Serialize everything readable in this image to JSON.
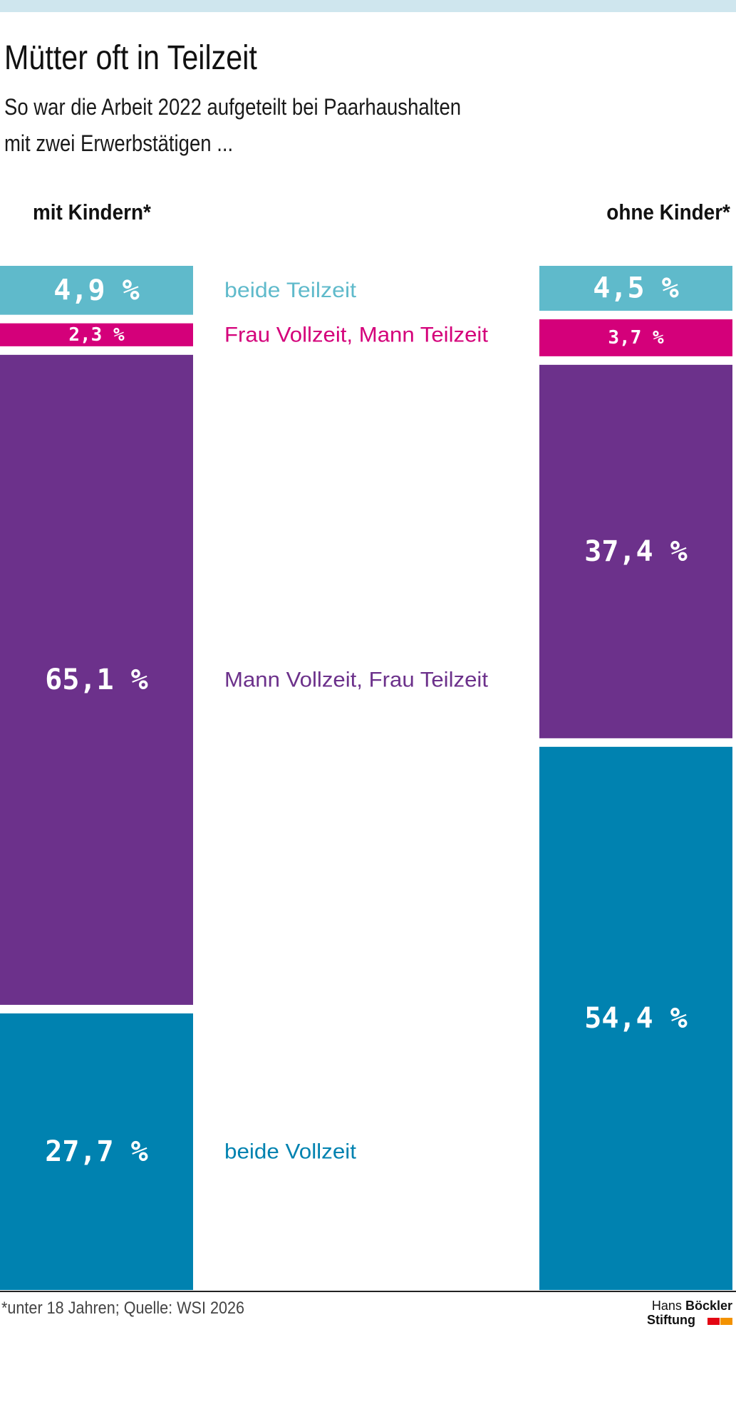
{
  "header": {
    "title": "Mütter oft in Teilzeit",
    "subtitle_line1": "So war die Arbeit 2022 aufgeteilt bei Paarhaushalten",
    "subtitle_line2": "mit zwei Erwerbstätigen ..."
  },
  "footer": {
    "source": "*unter 18 Jahren; Quelle: WSI 2026",
    "logo_hans": "Hans",
    "logo_boeckler": "Böckler",
    "logo_stiftung": "Stiftung"
  },
  "colors": {
    "beide_teilzeit": "#5fbacb",
    "frau_vollzeit": "#d4007a",
    "mann_vollzeit": "#6c318b",
    "beide_vollzeit": "#0082b0",
    "logo_red": "#e30613",
    "logo_orange": "#f39200"
  },
  "chart_data": {
    "type": "bar",
    "subtype": "100% stacked columns",
    "categories": [
      "mit Kindern*",
      "ohne Kinder*"
    ],
    "series": [
      {
        "name": "beide Teilzeit",
        "values": [
          4.9,
          4.5
        ],
        "labels": [
          "4,9 %",
          "4,5 %"
        ],
        "color": "#5fbacb"
      },
      {
        "name": "Frau Vollzeit, Mann Teilzeit",
        "values": [
          2.3,
          3.7
        ],
        "labels": [
          "2,3 %",
          "3,7 %"
        ],
        "color": "#d4007a"
      },
      {
        "name": "Mann Vollzeit, Frau Teilzeit",
        "values": [
          65.1,
          37.4
        ],
        "labels": [
          "65,1 %",
          "37,4 %"
        ],
        "color": "#6c318b"
      },
      {
        "name": "beide Vollzeit",
        "values": [
          27.7,
          54.4
        ],
        "labels": [
          "27,7 %",
          "54,4 %"
        ],
        "color": "#0082b0"
      }
    ],
    "stack_order": "top-to-bottom",
    "legend": "center, labels next to segments of the left column"
  }
}
